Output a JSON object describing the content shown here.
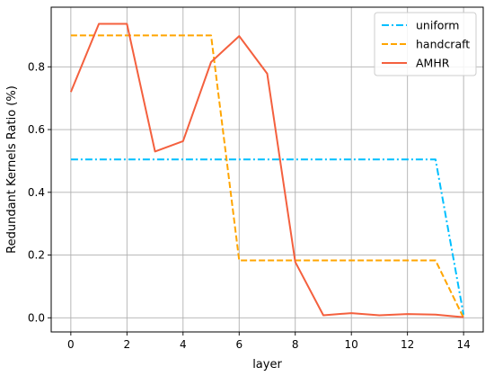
{
  "chart_data": {
    "type": "line",
    "title": "",
    "xlabel": "layer",
    "ylabel": "Redundant Kernels Ratio (%)",
    "xlim": [
      -0.7,
      14.7
    ],
    "ylim": [
      -0.045,
      0.99
    ],
    "xticks": [
      0,
      2,
      4,
      6,
      8,
      10,
      12,
      14
    ],
    "yticks": [
      0.0,
      0.2,
      0.4,
      0.6,
      0.8
    ],
    "ytick_labels": [
      "0.0",
      "0.2",
      "0.4",
      "0.6",
      "0.8"
    ],
    "grid": true,
    "legend_position": "top-right",
    "series": [
      {
        "name": "uniform",
        "color": "#00bfff",
        "style": "dashdot",
        "x": [
          0,
          1,
          2,
          3,
          4,
          5,
          6,
          7,
          8,
          9,
          10,
          11,
          12,
          13,
          14
        ],
        "y": [
          0.505,
          0.505,
          0.505,
          0.505,
          0.505,
          0.505,
          0.505,
          0.505,
          0.505,
          0.505,
          0.505,
          0.505,
          0.505,
          0.505,
          0.01
        ]
      },
      {
        "name": "handcraft",
        "color": "#ffa500",
        "style": "dashed",
        "x": [
          0,
          1,
          2,
          3,
          4,
          5,
          6,
          7,
          8,
          9,
          10,
          11,
          12,
          13,
          14
        ],
        "y": [
          0.9,
          0.9,
          0.9,
          0.9,
          0.9,
          0.9,
          0.183,
          0.183,
          0.183,
          0.183,
          0.183,
          0.183,
          0.183,
          0.183,
          0.0
        ]
      },
      {
        "name": "AMHR",
        "color": "#f4603e",
        "style": "solid",
        "x": [
          0,
          1,
          2,
          3,
          4,
          5,
          6,
          7,
          8,
          9,
          10,
          11,
          12,
          13,
          14
        ],
        "y": [
          0.72,
          0.937,
          0.937,
          0.53,
          0.563,
          0.815,
          0.898,
          0.778,
          0.178,
          0.008,
          0.015,
          0.008,
          0.012,
          0.01,
          0.002
        ]
      }
    ]
  }
}
